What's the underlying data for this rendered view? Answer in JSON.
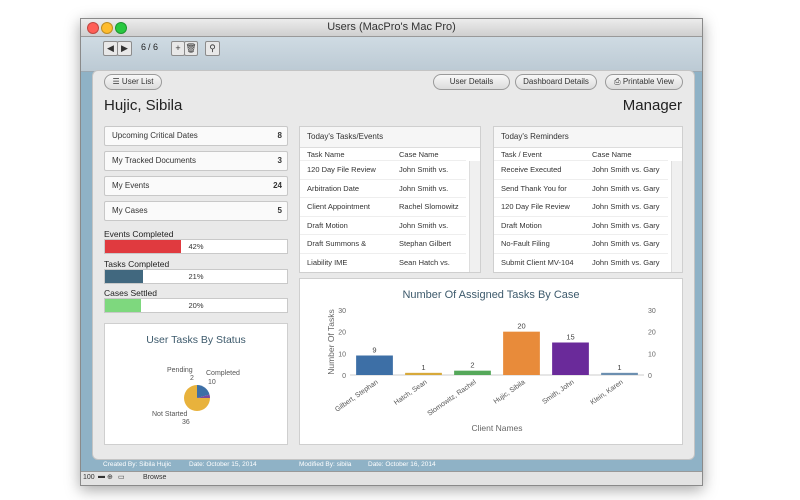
{
  "window": {
    "title": "Users (MacPro's Mac Pro)"
  },
  "toolbar": {
    "record_counter": "6",
    "record_total": "/ 6"
  },
  "header": {
    "user_list_label": "User List",
    "user_details_label": "User Details",
    "dashboard_details_label": "Dashboard Details",
    "printable_view_label": "Printable View",
    "user_name": "Hujic, Sibila",
    "user_role": "Manager"
  },
  "nav": [
    {
      "label": "Upcoming Critical Dates",
      "count": "8"
    },
    {
      "label": "My Tracked Documents",
      "count": "3"
    },
    {
      "label": "My Events",
      "count": "24"
    },
    {
      "label": "My Cases",
      "count": "5"
    }
  ],
  "progress": [
    {
      "label": "Events Completed",
      "value": 0.42,
      "text": "42%",
      "color": "#e03a3f"
    },
    {
      "label": "Tasks Completed",
      "value": 0.21,
      "text": "21%",
      "color": "#41687f"
    },
    {
      "label": "Cases Settled",
      "value": 0.2,
      "text": "20%",
      "color": "#7ed87e"
    }
  ],
  "tasks_panel": {
    "title": "Today's Tasks/Events",
    "col1": "Task Name",
    "col2": "Case Name",
    "rows": [
      {
        "task": "120 Day File Review",
        "case": "John Smith vs."
      },
      {
        "task": "Arbitration Date",
        "case": "John Smith vs."
      },
      {
        "task": "Client Appointment",
        "case": "Rachel Slomowitz"
      },
      {
        "task": "Draft Motion",
        "case": "John Smith vs."
      },
      {
        "task": "Draft Summons &",
        "case": "Stephan Gilbert"
      },
      {
        "task": "Liability IME",
        "case": "Sean Hatch vs."
      }
    ]
  },
  "reminders_panel": {
    "title": "Today's Reminders",
    "col1": "Task / Event",
    "col2": "Case Name",
    "rows": [
      {
        "task": "Receive Executed",
        "case": "John Smith vs. Gary"
      },
      {
        "task": "Send Thank You for",
        "case": "John Smith vs. Gary"
      },
      {
        "task": "120 Day File Review",
        "case": "John Smith vs. Gary"
      },
      {
        "task": "Draft Motion",
        "case": "John Smith vs. Gary"
      },
      {
        "task": "No-Fault Filing",
        "case": "John Smith vs. Gary"
      },
      {
        "task": "Submit Client MV-104",
        "case": "John Smith vs. Gary"
      }
    ]
  },
  "pie_panel": {
    "title": "User Tasks By Status"
  },
  "chart_data": [
    {
      "type": "bar",
      "title": "Number Of Assigned Tasks By Case",
      "xlabel": "Client Names",
      "ylabel": "Number Of Tasks",
      "ylim": [
        0,
        30
      ],
      "yticks": [
        "0",
        "10",
        "20",
        "30"
      ],
      "categories": [
        "Gilbert, Stephan",
        "Hatch, Sean",
        "Slomowitz, Rachel",
        "Hujic, Sibila",
        "Smith, John",
        "Klein, Karen"
      ],
      "values": [
        9,
        1,
        2,
        20,
        15,
        1
      ],
      "value_labels": [
        "9",
        "1",
        "2",
        "20",
        "15",
        "1"
      ],
      "colors": [
        "#3d6fa6",
        "#d7a93a",
        "#55a85a",
        "#e88b3a",
        "#6a2a9a",
        "#6c8fb0"
      ],
      "grid": false
    },
    {
      "type": "pie",
      "title": "User Tasks By Status",
      "categories": [
        "Completed",
        "Pending",
        "Not Started"
      ],
      "values": [
        10,
        2,
        36
      ],
      "value_labels": [
        "10",
        "2",
        "36"
      ],
      "colors": [
        "#3d6fa6",
        "#7d4a9c",
        "#e8b23c"
      ]
    }
  ],
  "status": {
    "created_by": "Created By: Sibila Hujic",
    "created_date": "Date: October 15, 2014",
    "modified_by": "Modified By: sibila",
    "modified_date": "Date: October 16, 2014"
  },
  "bottom": {
    "zoom": "100",
    "mode": "Browse"
  }
}
